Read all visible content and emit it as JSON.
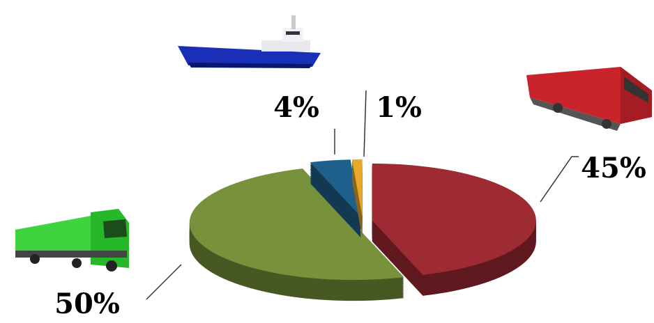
{
  "chart_data": {
    "type": "pie",
    "values": [
      45,
      50,
      4,
      1
    ],
    "value_labels": [
      "45%",
      "50%",
      "4%",
      "1%"
    ],
    "colors": [
      "#9e2a33",
      "#77923a",
      "#1f5f8b",
      "#e8a92a"
    ]
  }
}
